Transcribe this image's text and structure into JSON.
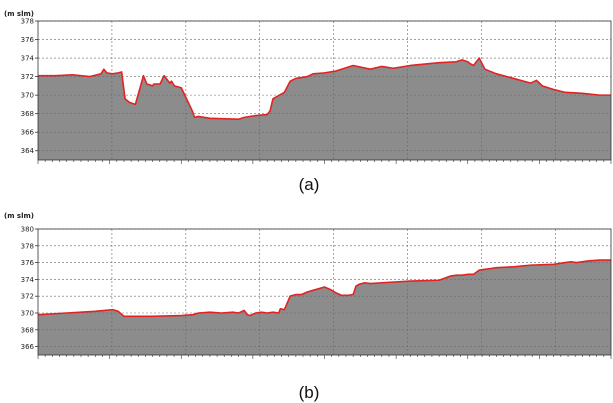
{
  "chart_data": [
    {
      "type": "area",
      "caption": "(a)",
      "ylabel": "(m slm)",
      "ylim": [
        363,
        378
      ],
      "yticks": [
        364,
        366,
        368,
        370,
        372,
        374,
        376,
        378
      ],
      "xlim": [
        0,
        100
      ],
      "xgrid": [
        0,
        12.9,
        25.8,
        38.7,
        51.6,
        64.5,
        77.4,
        90.3,
        100
      ],
      "grid": true,
      "fill_color": "#8c8c8c",
      "line_color": "#e02424",
      "series": [
        {
          "x": [
            0,
            3,
            6,
            9,
            11,
            11.5,
            12,
            13,
            14,
            14.6,
            14.8,
            15.2,
            16,
            17,
            18,
            18.4,
            19,
            19.5,
            20,
            20.2,
            21.3,
            22,
            23,
            23.3,
            23.8,
            25,
            26,
            27,
            27.3,
            28,
            30,
            35,
            36,
            38,
            40,
            40.5,
            41,
            43,
            44,
            45,
            47,
            48,
            50,
            52,
            55,
            58,
            60,
            62,
            65,
            70,
            73,
            74,
            75,
            75.4,
            76,
            77,
            78,
            80,
            83,
            86,
            87,
            88,
            90,
            92,
            95,
            98,
            100
          ],
          "y": [
            372.1,
            372.1,
            372.2,
            372.0,
            372.3,
            372.8,
            372.4,
            372.3,
            372.4,
            372.5,
            371.5,
            369.6,
            369.2,
            369.0,
            371.2,
            372.1,
            371.2,
            371.1,
            371.0,
            371.2,
            371.2,
            372.1,
            371.3,
            371.5,
            371.0,
            370.8,
            369.5,
            368.2,
            367.6,
            367.7,
            367.5,
            367.4,
            367.6,
            367.8,
            367.9,
            368.3,
            369.6,
            370.3,
            371.5,
            371.8,
            372.0,
            372.3,
            372.4,
            372.6,
            373.2,
            372.8,
            373.1,
            372.9,
            373.2,
            373.5,
            373.6,
            373.8,
            373.6,
            373.4,
            373.2,
            374.0,
            372.8,
            372.3,
            371.8,
            371.3,
            371.6,
            371.0,
            370.6,
            370.3,
            370.2,
            370.0,
            370.0
          ]
        }
      ]
    },
    {
      "type": "area",
      "caption": "(b)",
      "ylabel": "(m slm)",
      "ylim": [
        365,
        380
      ],
      "yticks": [
        366,
        368,
        370,
        372,
        374,
        376,
        378,
        380
      ],
      "xlim": [
        0,
        100
      ],
      "xgrid": [
        0,
        12.9,
        25.8,
        38.7,
        51.6,
        64.5,
        77.4,
        90.3,
        100
      ],
      "grid": true,
      "fill_color": "#8c8c8c",
      "line_color": "#e02424",
      "series": [
        {
          "x": [
            0,
            5,
            10,
            13,
            14,
            15,
            16,
            20,
            25,
            27,
            28,
            30,
            32,
            34,
            35,
            36,
            36.5,
            37,
            38,
            39,
            40,
            41,
            42,
            42.3,
            43,
            44,
            45,
            46,
            47,
            48,
            50,
            51,
            52,
            53,
            54,
            55,
            55.5,
            56,
            57,
            58,
            60,
            65,
            70,
            72,
            73,
            74,
            75,
            76,
            77,
            78,
            79,
            80,
            83,
            86,
            90,
            92,
            93,
            94,
            96,
            98,
            100
          ],
          "y": [
            369.8,
            370.0,
            370.2,
            370.4,
            370.2,
            369.6,
            369.6,
            369.6,
            369.7,
            369.8,
            370.0,
            370.1,
            370.0,
            370.1,
            370.0,
            370.3,
            369.8,
            369.7,
            370.0,
            370.1,
            370.0,
            370.1,
            370.0,
            370.5,
            370.4,
            372.0,
            372.2,
            372.2,
            372.5,
            372.7,
            373.1,
            372.8,
            372.4,
            372.1,
            372.1,
            372.2,
            373.2,
            373.4,
            373.6,
            373.5,
            373.6,
            373.8,
            373.9,
            374.4,
            374.5,
            374.5,
            374.6,
            374.6,
            375.1,
            375.2,
            375.3,
            375.4,
            375.5,
            375.7,
            375.8,
            376.0,
            376.1,
            376.0,
            376.2,
            376.3,
            376.3
          ]
        }
      ]
    }
  ]
}
